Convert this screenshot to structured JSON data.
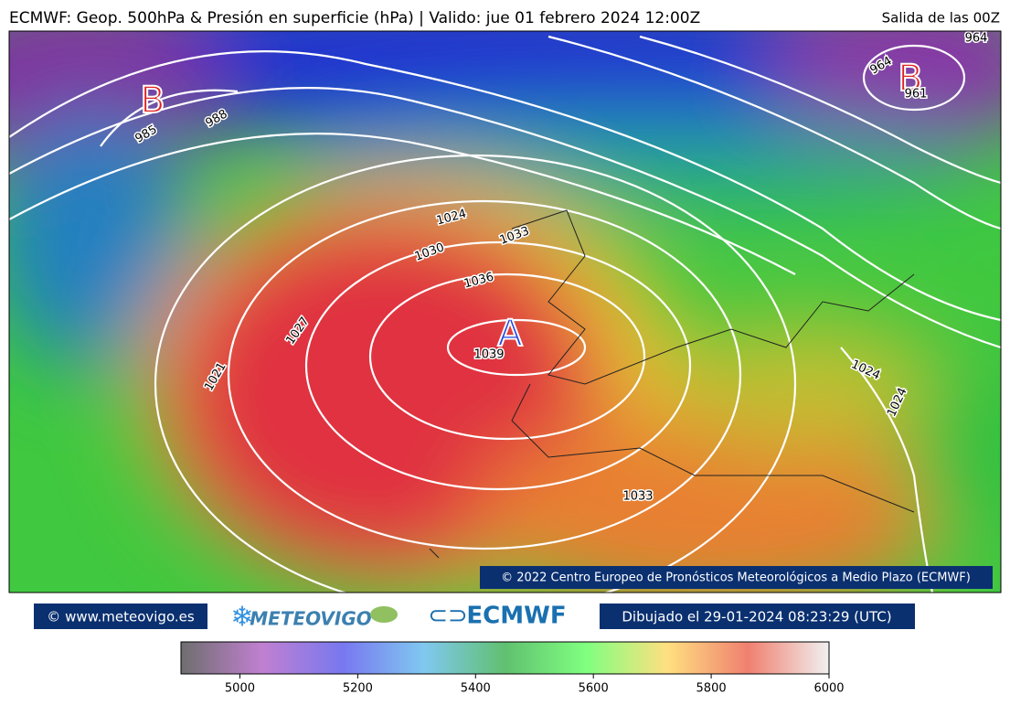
{
  "header": {
    "title": "ECMWF: Geop. 500hPa & Presión en superficie (hPa) | Valido: jue 01 febrero 2024 12:00Z",
    "run": "Salida de las 00Z"
  },
  "map": {
    "centers": [
      "B",
      "B",
      "A"
    ],
    "isobar_labels": [
      985,
      988,
      1024,
      1033,
      1030,
      1036,
      1039,
      1027,
      1021,
      1024,
      1024,
      1033,
      964,
      964,
      961
    ],
    "copyright": "© 2022 Centro Europeo de Pronósticos Meteorológicos a Medio Plazo (ECMWF)"
  },
  "footer": {
    "site": "© www.meteovigo.es",
    "logo1": "METEOVIGO",
    "logo2": "ECMWF",
    "drawn": "Dibujado el 29-01-2024 08:23:29 (UTC)"
  },
  "colorbar": {
    "range": [
      4900,
      6000
    ],
    "ticks": [
      5000,
      5200,
      5400,
      5600,
      5800,
      6000
    ],
    "colors": [
      "#6e6e6e",
      "#c080d0",
      "#7878f0",
      "#80c8f0",
      "#60c070",
      "#80ff80",
      "#ffe080",
      "#f08070",
      "#f0f0f0"
    ]
  }
}
